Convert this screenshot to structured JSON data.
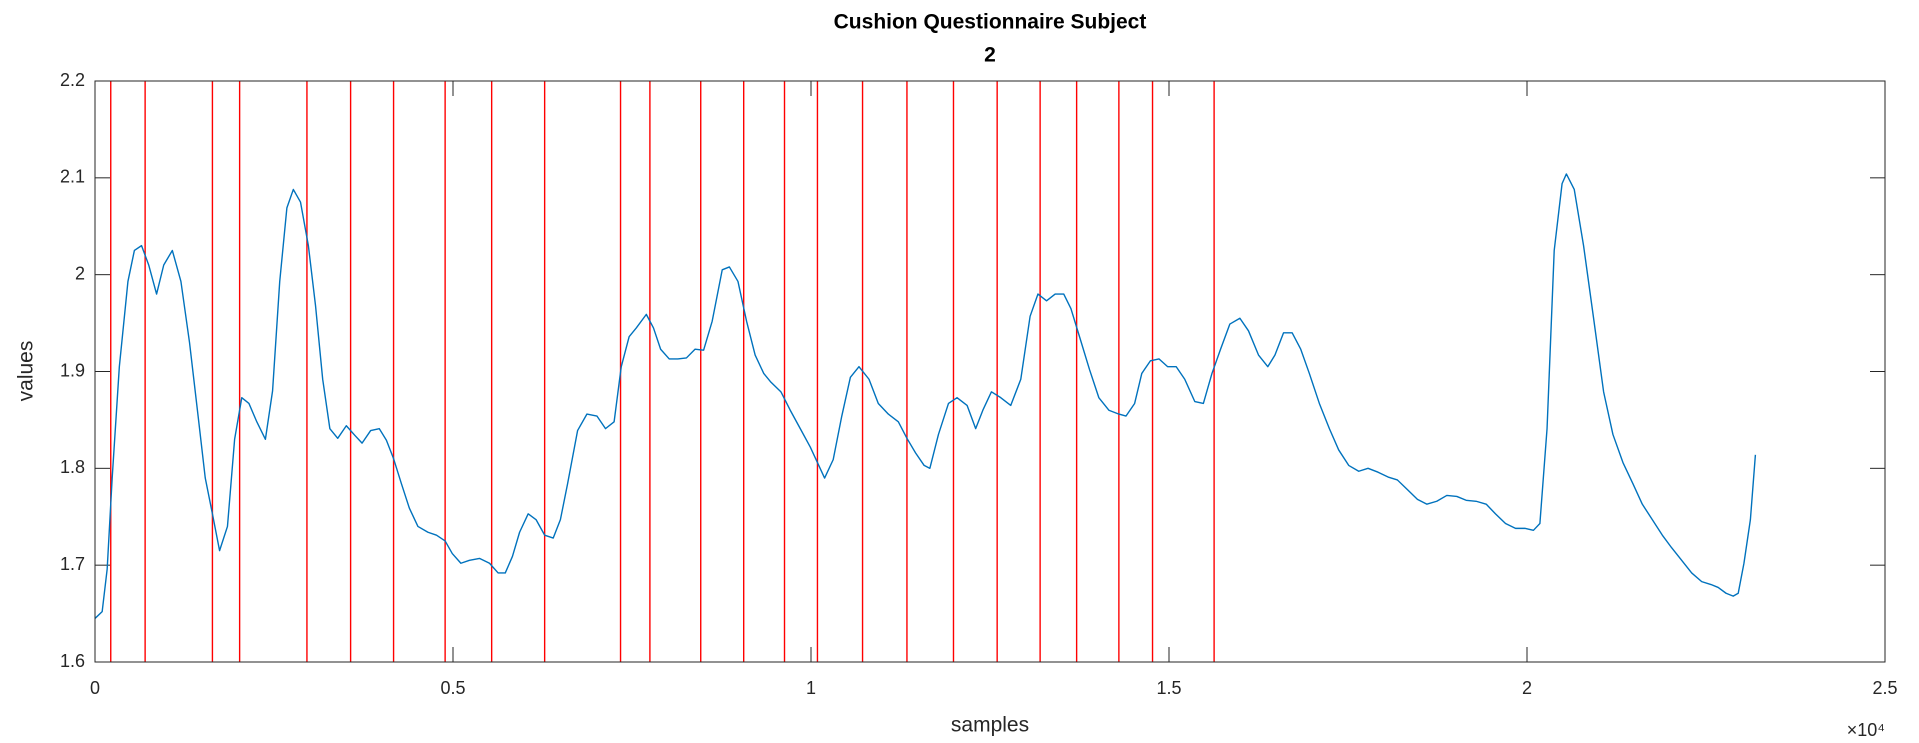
{
  "chart_data": {
    "type": "line",
    "title": [
      "Cushion Questionnaire Subject",
      "2"
    ],
    "xlabel": "samples",
    "ylabel": "values",
    "x_multiplier": "×10⁴",
    "xlim": [
      0,
      25000
    ],
    "ylim": [
      1.6,
      2.2
    ],
    "xticks": [
      {
        "value": 0,
        "label": "0"
      },
      {
        "value": 5000,
        "label": "0.5"
      },
      {
        "value": 10000,
        "label": "1"
      },
      {
        "value": 15000,
        "label": "1.5"
      },
      {
        "value": 20000,
        "label": "2"
      },
      {
        "value": 25000,
        "label": "2.5"
      }
    ],
    "yticks": [
      1.6,
      1.7,
      1.8,
      1.9,
      2,
      2.1,
      2.2
    ],
    "grid": false,
    "box": true,
    "vlines": {
      "color": "#ff0000",
      "x": [
        220,
        700,
        1640,
        2020,
        2960,
        3570,
        4170,
        4890,
        5540,
        6280,
        7340,
        7750,
        8460,
        9060,
        9630,
        10090,
        10720,
        11340,
        11990,
        12600,
        13200,
        13710,
        14300,
        14770,
        15630
      ]
    },
    "series": [
      {
        "color": "#0072bd",
        "x": [
          0,
          100,
          170,
          240,
          340,
          460,
          550,
          650,
          750,
          860,
          960,
          1080,
          1200,
          1320,
          1440,
          1540,
          1640,
          1740,
          1850,
          1950,
          2050,
          2150,
          2260,
          2380,
          2480,
          2580,
          2680,
          2770,
          2870,
          2980,
          3080,
          3180,
          3280,
          3390,
          3510,
          3630,
          3730,
          3850,
          3970,
          4070,
          4170,
          4280,
          4390,
          4510,
          4650,
          4770,
          4890,
          4990,
          5110,
          5230,
          5370,
          5510,
          5630,
          5730,
          5830,
          5930,
          6050,
          6160,
          6280,
          6400,
          6500,
          6600,
          6740,
          6870,
          7010,
          7130,
          7250,
          7350,
          7460,
          7560,
          7700,
          7800,
          7900,
          8020,
          8140,
          8260,
          8380,
          8500,
          8620,
          8760,
          8860,
          8980,
          9100,
          9220,
          9340,
          9440,
          9580,
          9710,
          9850,
          9990,
          10090,
          10190,
          10310,
          10430,
          10550,
          10670,
          10810,
          10940,
          11080,
          11220,
          11340,
          11460,
          11580,
          11660,
          11780,
          11920,
          12040,
          12180,
          12300,
          12400,
          12520,
          12650,
          12790,
          12930,
          13060,
          13170,
          13290,
          13410,
          13530,
          13630,
          13750,
          13890,
          14020,
          14160,
          14300,
          14400,
          14520,
          14620,
          14740,
          14860,
          14980,
          15100,
          15220,
          15360,
          15480,
          15600,
          15720,
          15850,
          15990,
          16110,
          16250,
          16380,
          16480,
          16600,
          16720,
          16840,
          16960,
          17100,
          17240,
          17370,
          17510,
          17650,
          17780,
          17920,
          18060,
          18190,
          18330,
          18470,
          18600,
          18740,
          18880,
          19020,
          19150,
          19290,
          19430,
          19560,
          19700,
          19840,
          19970,
          20090,
          20180,
          20280,
          20380,
          20490,
          20550,
          20660,
          20790,
          20930,
          21070,
          21200,
          21340,
          21480,
          21610,
          21750,
          21890,
          22020,
          22160,
          22300,
          22440,
          22570,
          22670,
          22780,
          22880,
          22950,
          23030,
          23120,
          23190
        ],
        "values": [
          1.645,
          1.652,
          1.696,
          1.79,
          1.905,
          1.993,
          2.025,
          2.03,
          2.01,
          1.98,
          2.01,
          2.025,
          1.993,
          1.93,
          1.854,
          1.79,
          1.753,
          1.715,
          1.74,
          1.83,
          1.873,
          1.867,
          1.848,
          1.83,
          1.88,
          1.993,
          2.069,
          2.088,
          2.075,
          2.03,
          1.968,
          1.892,
          1.841,
          1.831,
          1.844,
          1.834,
          1.826,
          1.839,
          1.841,
          1.829,
          1.81,
          1.784,
          1.759,
          1.74,
          1.734,
          1.731,
          1.725,
          1.712,
          1.702,
          1.705,
          1.707,
          1.702,
          1.692,
          1.692,
          1.709,
          1.734,
          1.753,
          1.747,
          1.731,
          1.728,
          1.747,
          1.784,
          1.839,
          1.856,
          1.854,
          1.841,
          1.848,
          1.905,
          1.936,
          1.945,
          1.959,
          1.945,
          1.923,
          1.913,
          1.913,
          1.914,
          1.923,
          1.922,
          1.952,
          2.005,
          2.008,
          1.993,
          1.952,
          1.917,
          1.898,
          1.889,
          1.879,
          1.86,
          1.841,
          1.822,
          1.806,
          1.79,
          1.809,
          1.854,
          1.894,
          1.905,
          1.892,
          1.867,
          1.856,
          1.848,
          1.831,
          1.816,
          1.803,
          1.8,
          1.835,
          1.867,
          1.873,
          1.865,
          1.841,
          1.86,
          1.879,
          1.873,
          1.865,
          1.892,
          1.957,
          1.98,
          1.973,
          1.98,
          1.98,
          1.965,
          1.936,
          1.902,
          1.873,
          1.86,
          1.856,
          1.854,
          1.867,
          1.898,
          1.911,
          1.913,
          1.905,
          1.905,
          1.892,
          1.869,
          1.867,
          1.898,
          1.923,
          1.949,
          1.955,
          1.942,
          1.917,
          1.905,
          1.917,
          1.94,
          1.94,
          1.923,
          1.898,
          1.867,
          1.841,
          1.819,
          1.803,
          1.797,
          1.8,
          1.796,
          1.791,
          1.788,
          1.778,
          1.768,
          1.763,
          1.766,
          1.772,
          1.771,
          1.767,
          1.766,
          1.763,
          1.753,
          1.743,
          1.738,
          1.738,
          1.736,
          1.743,
          1.841,
          2.025,
          2.094,
          2.104,
          2.088,
          2.03,
          1.955,
          1.879,
          1.835,
          1.806,
          1.784,
          1.763,
          1.747,
          1.731,
          1.718,
          1.705,
          1.692,
          1.683,
          1.68,
          1.677,
          1.671,
          1.668,
          1.671,
          1.702,
          1.747,
          1.814
        ]
      }
    ]
  }
}
